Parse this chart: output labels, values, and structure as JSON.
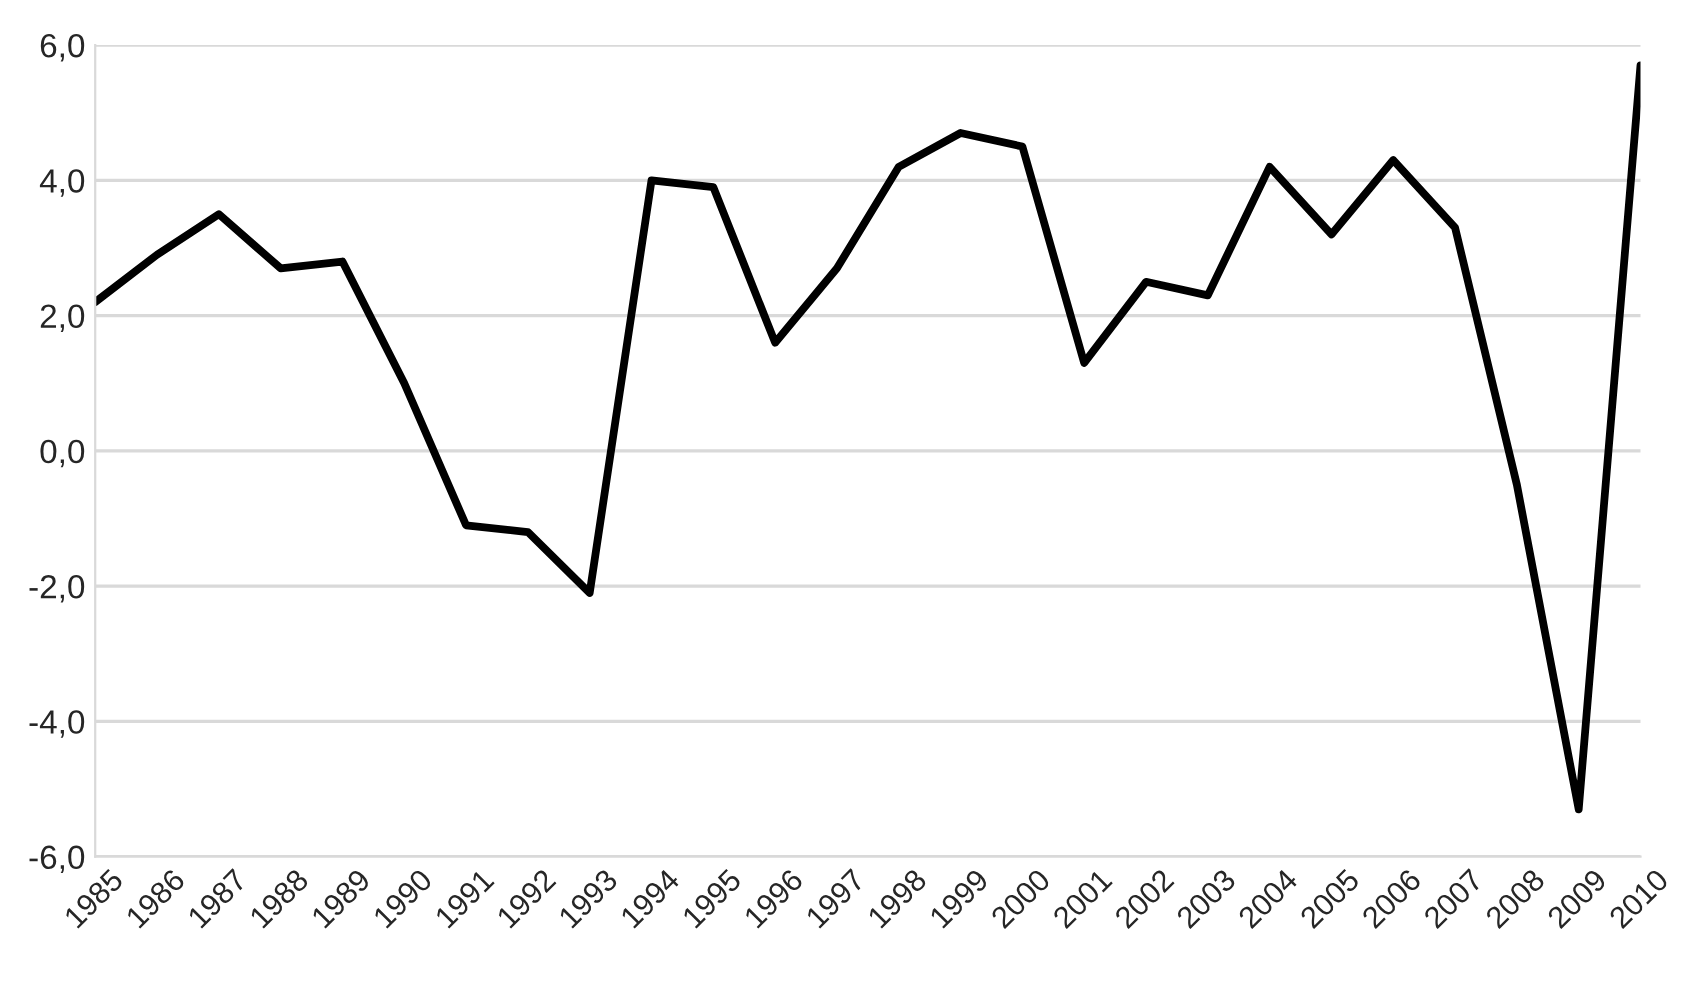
{
  "chart_data": {
    "type": "line",
    "categories": [
      "1985",
      "1986",
      "1987",
      "1988",
      "1989",
      "1990",
      "1991",
      "1992",
      "1993",
      "1994",
      "1995",
      "1996",
      "1997",
      "1998",
      "1999",
      "2000",
      "2001",
      "2002",
      "2003",
      "2004",
      "2005",
      "2006",
      "2007",
      "2008",
      "2009",
      "2010"
    ],
    "series": [
      {
        "color": "#000000",
        "values": [
          2.2,
          2.9,
          3.5,
          2.7,
          2.8,
          1.0,
          -1.1,
          -1.2,
          -2.1,
          4.0,
          3.9,
          1.6,
          2.7,
          4.2,
          4.7,
          4.5,
          1.3,
          2.5,
          2.3,
          4.2,
          3.2,
          4.3,
          3.3,
          -0.5,
          -5.3,
          5.7
        ]
      }
    ],
    "ylim": [
      -6,
      6
    ],
    "yticks": [
      {
        "value": -6,
        "label": "-6,0"
      },
      {
        "value": -4,
        "label": "-4,0"
      },
      {
        "value": -2,
        "label": "-2,0"
      },
      {
        "value": 0,
        "label": "0,0"
      },
      {
        "value": 2,
        "label": "2,0"
      },
      {
        "value": 4,
        "label": "4,0"
      },
      {
        "value": 6,
        "label": "6,0"
      }
    ],
    "grid": "y",
    "marker": "none",
    "line_style": "solid"
  }
}
